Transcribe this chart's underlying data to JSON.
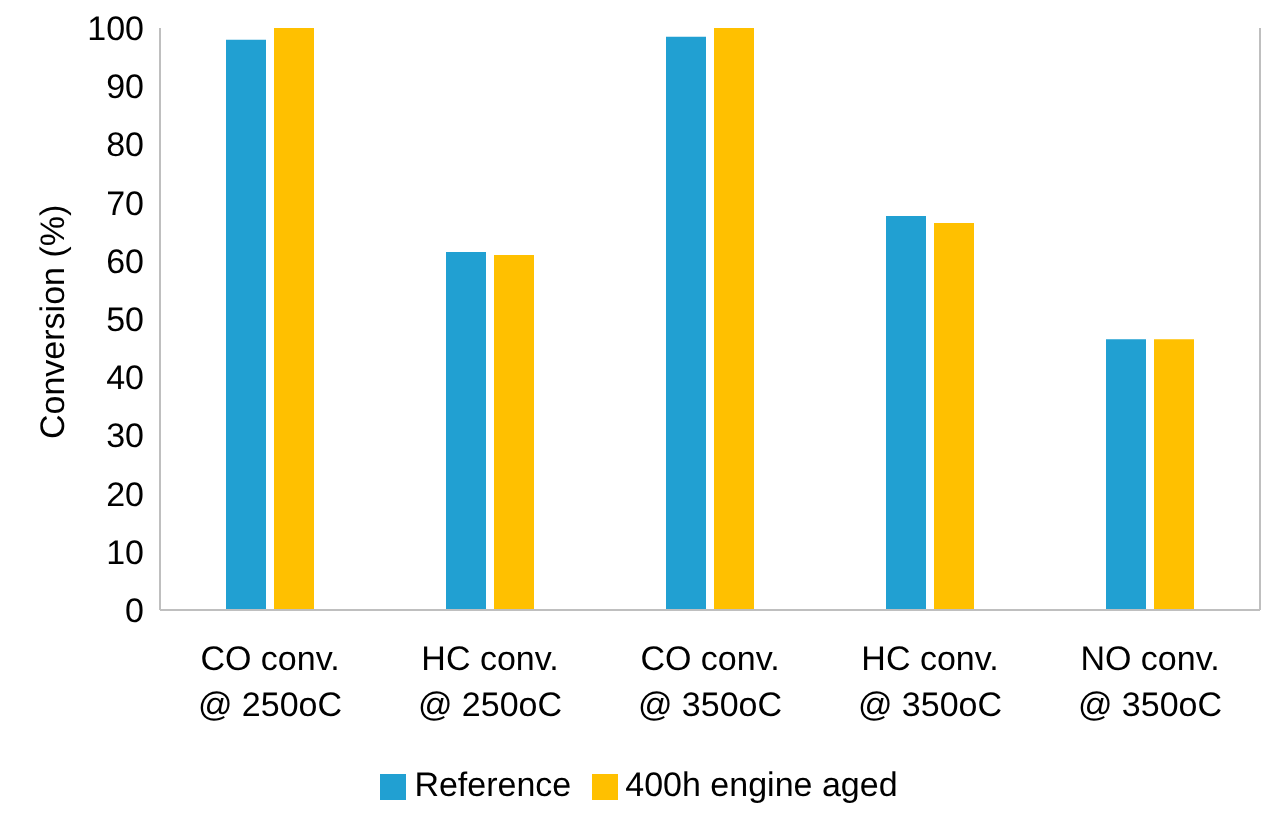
{
  "chart_data": {
    "type": "bar",
    "ylabel": "Conversion (%)",
    "categories": [
      "CO conv.\n@ 250oC",
      "HC conv.\n@ 250oC",
      "CO conv.\n@ 350oC",
      "HC conv.\n@ 350oC",
      "NO conv.\n@ 350oC"
    ],
    "series": [
      {
        "name": "Reference",
        "color": "#21a0d2",
        "values": [
          98,
          61.5,
          98.5,
          67.7,
          46.5
        ]
      },
      {
        "name": "400h engine aged",
        "color": "#ffc000",
        "values": [
          100,
          61,
          100,
          66.5,
          46.5
        ]
      }
    ],
    "ylim": [
      0,
      100
    ],
    "yticks": [
      0,
      10,
      20,
      30,
      40,
      50,
      60,
      70,
      80,
      90,
      100
    ],
    "grid": false,
    "legend": "bottom"
  }
}
